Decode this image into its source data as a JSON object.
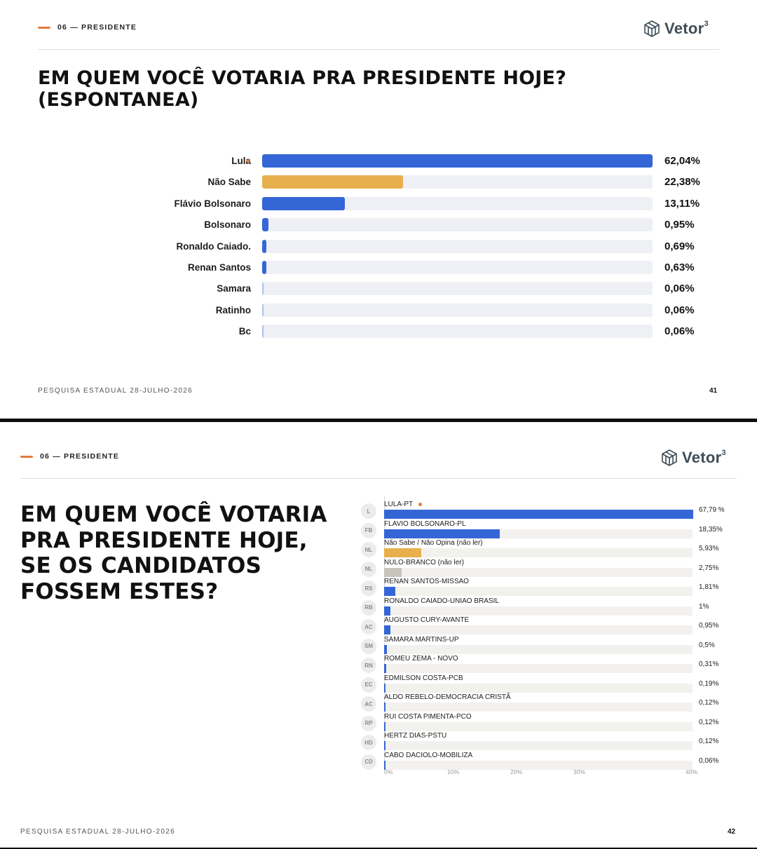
{
  "slides": [
    {
      "section": "06 — PRESIDENTE",
      "brand": "Vetor",
      "brand_sup": "3",
      "title": "EM QUEM VOCÊ VOTARIA PRA PRESIDENTE HOJE? (ESPONTANEA)",
      "footer_left": "PESQUISA ESTADUAL 28-JULHO-2026",
      "page_number": "41"
    },
    {
      "section": "06 — PRESIDENTE",
      "brand": "Vetor",
      "brand_sup": "3",
      "title": "EM QUEM VOCÊ VOTARIA PRA PRESIDENTE HOJE, SE OS CANDIDATOS FOSSEM ESTES?",
      "footer_left": "PESQUISA ESTADUAL 28-JULHO-2026",
      "page_number": "42"
    }
  ],
  "colors": {
    "blue": "#3566d6",
    "yellow": "#e8b04c",
    "gray": "#c8c3bb",
    "accent_orange": "#e07b3c",
    "track": "#eef0f5"
  },
  "chart_data": [
    {
      "type": "bar",
      "orientation": "horizontal",
      "title": "EM QUEM VOCÊ VOTARIA PRA PRESIDENTE HOJE? (ESPONTANEA)",
      "categories": [
        "Lula",
        "Não Sabe",
        "Flávio Bolsonaro",
        "Bolsonaro",
        "Ronaldo Caiado.",
        "Renan Santos",
        "Samara",
        "Ratinho",
        "Bc"
      ],
      "values": [
        62.04,
        22.38,
        13.11,
        0.95,
        0.69,
        0.63,
        0.06,
        0.06,
        0.06
      ],
      "value_labels": [
        "62,04%",
        "22,38%",
        "13,11%",
        "0,95%",
        "0,69%",
        "0,63%",
        "0,06%",
        "0,06%",
        "0,06%"
      ],
      "bar_colors": [
        "#3566d6",
        "#e8b04c",
        "#3566d6",
        "#3566d6",
        "#3566d6",
        "#3566d6",
        "#3566d6",
        "#3566d6",
        "#3566d6"
      ],
      "highlight_index": 0,
      "xlim": [
        0,
        62.04
      ],
      "grid": false
    },
    {
      "type": "bar",
      "orientation": "horizontal",
      "title": "EM QUEM VOCÊ VOTARIA PRA PRESIDENTE HOJE, SE OS CANDIDATOS FOSSEM ESTES?",
      "categories": [
        "LULA-PT",
        "FLAVIO BOLSONARO-PL",
        "Não Sabe / Não Opina (não ler)",
        "NULO-BRANCO (não ler)",
        "RENAN SANTOS-MISSAO",
        "RONALDO CAIADO-UNIAO BRASIL",
        "AUGUSTO CURY-AVANTE",
        "SAMARA MARTINS-UP",
        "ROMEU ZEMA - NOVO",
        "EDMILSON COSTA-PCB",
        "ALDO REBELO-DEMOCRACIA CRISTÃ",
        "RUI COSTA PIMENTA-PCO",
        "HERTZ DIAS-PSTU",
        "CABO DACIOLO-MOBILIZA"
      ],
      "badges": [
        "L",
        "FB",
        "NL",
        "NL",
        "RS",
        "RB",
        "AC",
        "SM",
        "RN",
        "EC",
        "AC",
        "RP",
        "HD",
        "CD"
      ],
      "values": [
        67.79,
        18.35,
        5.93,
        2.75,
        1.81,
        1,
        0.95,
        0.5,
        0.31,
        0.19,
        0.12,
        0.12,
        0.12,
        0.06
      ],
      "value_labels": [
        "67,79 %",
        "18,35%",
        "5,93%",
        "2,75%",
        "1,81%",
        "1%",
        "0,95%",
        "0,5%",
        "0,31%",
        "0,19%",
        "0,12%",
        "0,12%",
        "0,12%",
        "0,06%"
      ],
      "bar_colors": [
        "#3566d6",
        "#3566d6",
        "#e8b04c",
        "#c8c3bb",
        "#3566d6",
        "#3566d6",
        "#3566d6",
        "#3566d6",
        "#3566d6",
        "#3566d6",
        "#3566d6",
        "#3566d6",
        "#3566d6",
        "#3566d6"
      ],
      "highlight_index": 0,
      "x_ticks": [
        "0%",
        "10%",
        "20%",
        "30%",
        "40%"
      ],
      "x_tick_values": [
        0,
        10,
        20,
        30,
        40
      ],
      "xlim": [
        0,
        49
      ],
      "grid": false
    }
  ]
}
